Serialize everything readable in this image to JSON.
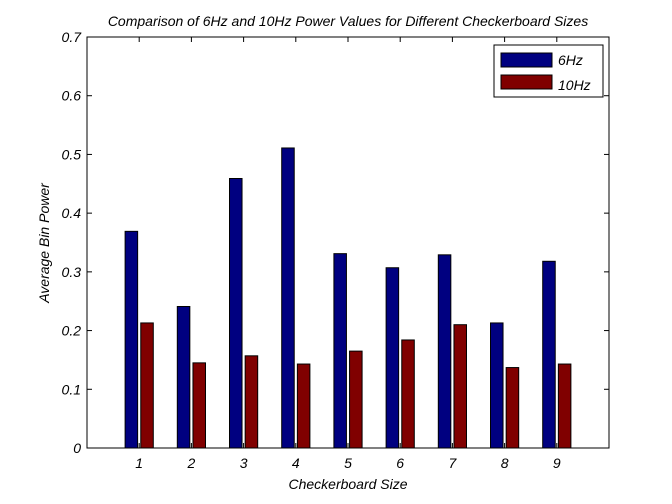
{
  "chart_data": {
    "type": "bar",
    "title": "Comparison of 6Hz and 10Hz Power Values for Different Checkerboard Sizes",
    "xlabel": "Checkerboard Size",
    "ylabel": "Average Bin Power",
    "categories": [
      "1",
      "2",
      "3",
      "4",
      "5",
      "6",
      "7",
      "8",
      "9"
    ],
    "series": [
      {
        "name": "6Hz",
        "color": "#000080",
        "values": [
          0.369,
          0.241,
          0.459,
          0.511,
          0.331,
          0.307,
          0.329,
          0.213,
          0.318
        ]
      },
      {
        "name": "10Hz",
        "color": "#800000",
        "values": [
          0.213,
          0.145,
          0.157,
          0.143,
          0.165,
          0.184,
          0.21,
          0.137,
          0.143
        ]
      }
    ],
    "ylim": [
      0,
      0.7
    ],
    "yticks": [
      "0",
      "0.1",
      "0.2",
      "0.3",
      "0.4",
      "0.5",
      "0.6",
      "0.7"
    ],
    "xlim": [
      0,
      10
    ],
    "grid": false,
    "legend_position": "top-right"
  }
}
